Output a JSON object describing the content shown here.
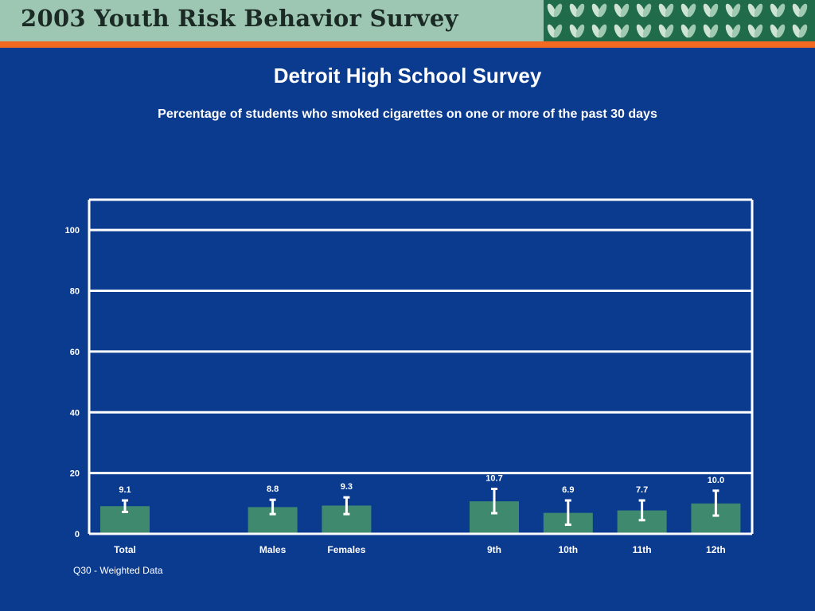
{
  "banner": {
    "title": "2003 Youth Risk Behavior Survey"
  },
  "slide": {
    "title": "Detroit High School Survey",
    "subtitle": "Percentage of students who smoked cigarettes on one or more of the past 30 days",
    "footnote": "Q30 - Weighted Data"
  },
  "colors": {
    "background": "#0b3b8f",
    "bar": "#3f8a6e",
    "banner": "#9dc7b3",
    "accent": "#f26a21",
    "pattern": "#1f6b4a"
  },
  "chart_data": {
    "type": "bar",
    "categories": [
      "Total",
      "Males",
      "Females",
      "9th",
      "10th",
      "11th",
      "12th"
    ],
    "values": [
      9.1,
      8.8,
      9.3,
      10.7,
      6.9,
      7.7,
      10.0
    ],
    "value_labels": [
      "9.1",
      "8.8",
      "9.3",
      "10.7",
      "6.9",
      "7.7",
      "10.0"
    ],
    "error_bars": [
      [
        7.2,
        11.0
      ],
      [
        6.5,
        11.2
      ],
      [
        6.5,
        12.0
      ],
      [
        6.8,
        14.8
      ],
      [
        3.0,
        11.0
      ],
      [
        4.5,
        11.0
      ],
      [
        6.0,
        14.2
      ]
    ],
    "groups": [
      [
        "Total"
      ],
      [
        "Males",
        "Females"
      ],
      [
        "9th",
        "10th",
        "11th",
        "12th"
      ]
    ],
    "yticks": [
      0,
      20,
      40,
      60,
      80,
      100
    ],
    "ylim": [
      0,
      110
    ],
    "title": "",
    "xlabel": "",
    "ylabel": "",
    "grid": true,
    "legend": "none"
  }
}
